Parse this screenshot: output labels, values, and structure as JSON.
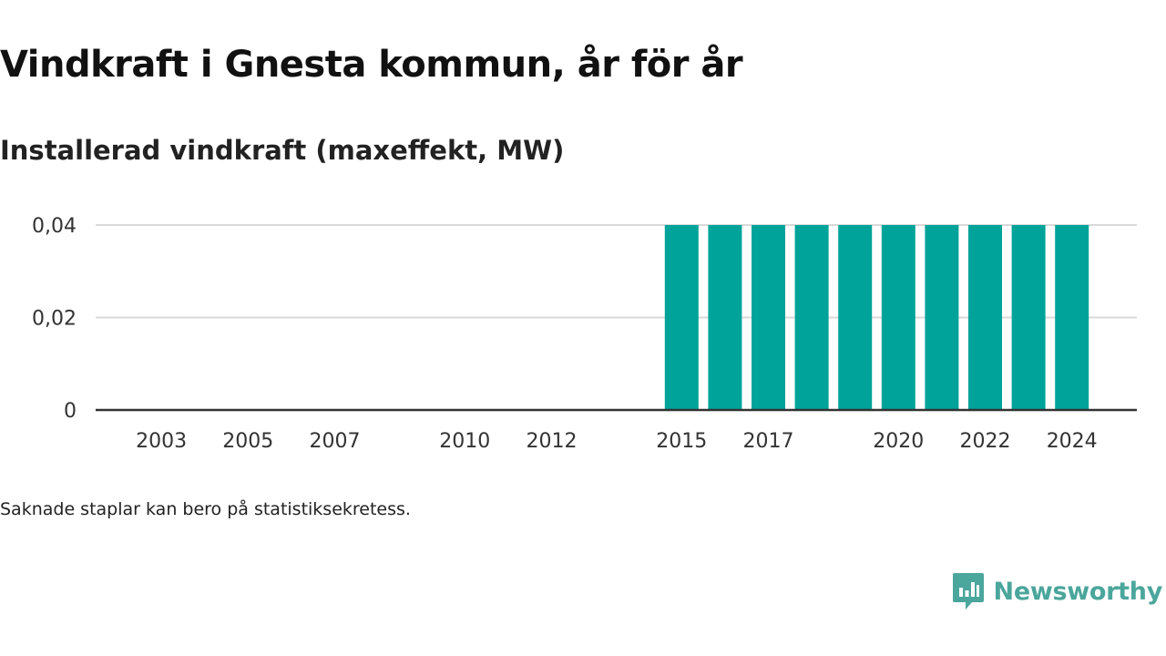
{
  "title": "Vindkraft i Gnesta kommun, år för år",
  "subtitle": "Installerad vindkraft (maxeffekt, MW)",
  "footnote": "Saknade staplar kan bero på statistiksekretess.",
  "brand": {
    "name": "Newsworthy",
    "logo_icon": "newsworthy-logo-icon",
    "color": "#4ba69c"
  },
  "colors": {
    "bar": "#00a39a",
    "grid": "#d9d9d9",
    "axis": "#333333"
  },
  "chart_data": {
    "type": "bar",
    "title": "Vindkraft i Gnesta kommun, år för år",
    "subtitle": "Installerad vindkraft (maxeffekt, MW)",
    "xlabel": "",
    "ylabel": "",
    "categories": [
      "2002",
      "2003",
      "2004",
      "2005",
      "2006",
      "2007",
      "2008",
      "2009",
      "2010",
      "2011",
      "2012",
      "2013",
      "2014",
      "2015",
      "2016",
      "2017",
      "2018",
      "2019",
      "2020",
      "2021",
      "2022",
      "2023",
      "2024"
    ],
    "values": [
      0,
      0,
      0,
      0,
      0,
      0,
      0,
      0,
      0,
      0,
      0,
      0,
      0,
      0.04,
      0.04,
      0.04,
      0.04,
      0.04,
      0.04,
      0.04,
      0.04,
      0.04,
      0.04
    ],
    "x_tick_labels": [
      "2003",
      "2005",
      "2007",
      "2010",
      "2012",
      "2015",
      "2017",
      "2020",
      "2022",
      "2024"
    ],
    "ylim": [
      0,
      0.04
    ],
    "y_ticks": [
      0,
      0.02,
      0.04
    ],
    "y_tick_labels": [
      "0",
      "0,02",
      "0,04"
    ],
    "grid": true,
    "legend": "none"
  }
}
